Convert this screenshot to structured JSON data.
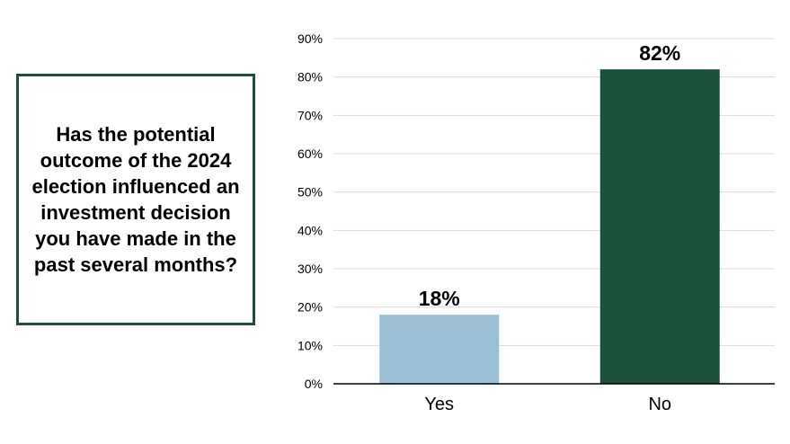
{
  "question": "Has the potential outcome of the 2024 election influenced an investment decision you have made in the past several months?",
  "colors": {
    "border": "#1f4e3a",
    "yes_bar": "#9bbfd3",
    "no_bar": "#1c5239",
    "grid": "#d9d9d9",
    "axis": "#000000"
  },
  "chart_data": {
    "type": "bar",
    "categories": [
      "Yes",
      "No"
    ],
    "values": [
      18,
      82
    ],
    "value_labels": [
      "18%",
      "82%"
    ],
    "bar_colors": [
      "#9bbfd3",
      "#1c5239"
    ],
    "ylim": [
      0,
      90
    ],
    "yticks": [
      0,
      10,
      20,
      30,
      40,
      50,
      60,
      70,
      80,
      90
    ],
    "ytick_labels": [
      "0%",
      "10%",
      "20%",
      "30%",
      "40%",
      "50%",
      "60%",
      "70%",
      "80%",
      "90%"
    ],
    "grid": true,
    "xlabel": "",
    "ylabel": ""
  }
}
